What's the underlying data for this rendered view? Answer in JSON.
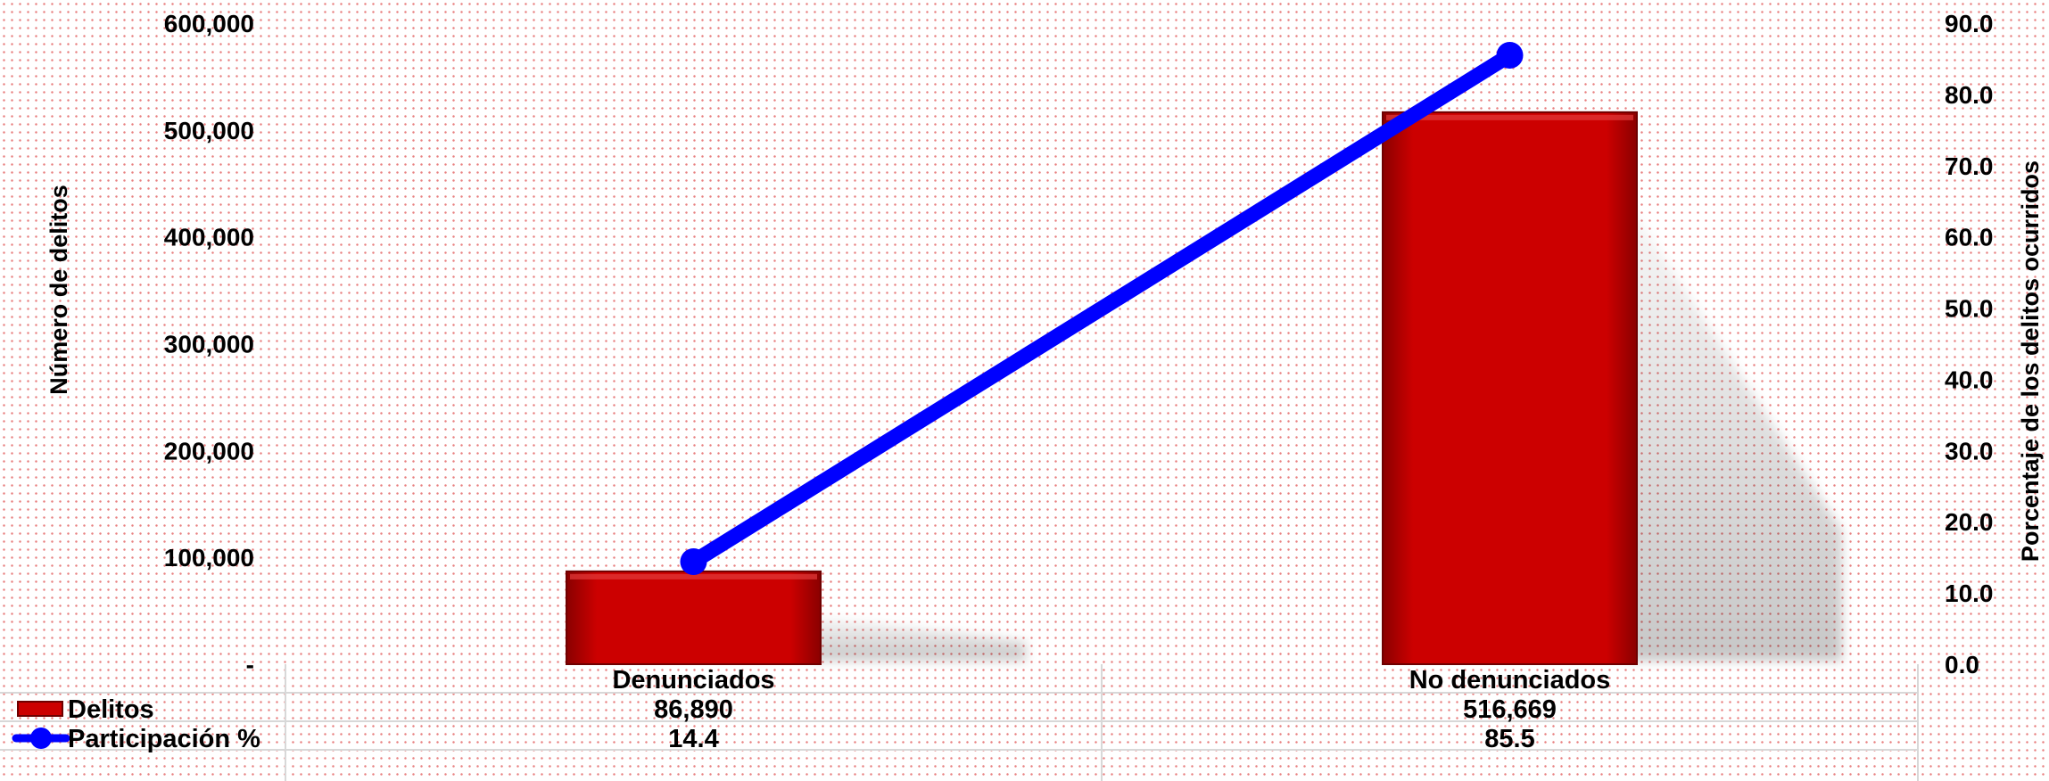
{
  "chart_data": {
    "type": "bar",
    "categories": [
      "Denunciados",
      "No denunciados"
    ],
    "series": [
      {
        "name": "Delitos",
        "type": "bar",
        "axis": "left",
        "color": "#cc0000",
        "values": [
          86890,
          516669
        ],
        "display": [
          "86,890",
          "516,669"
        ]
      },
      {
        "name": "Participación %",
        "type": "line",
        "axis": "right",
        "color": "#0000ff",
        "values": [
          14.4,
          85.5
        ],
        "display": [
          "14.4",
          "85.5"
        ]
      }
    ],
    "ylabel": "Número de delitos",
    "y2label": "Porcentaje de los delitos ocurridos",
    "ylim": [
      0,
      600000
    ],
    "y2lim": [
      0,
      90
    ],
    "yticks": [
      {
        "value": 0,
        "label": "-"
      },
      {
        "value": 100000,
        "label": "100,000"
      },
      {
        "value": 200000,
        "label": "200,000"
      },
      {
        "value": 300000,
        "label": "300,000"
      },
      {
        "value": 400000,
        "label": "400,000"
      },
      {
        "value": 500000,
        "label": "500,000"
      },
      {
        "value": 600000,
        "label": "600,000"
      }
    ],
    "y2ticks": [
      {
        "value": 0,
        "label": "0.0"
      },
      {
        "value": 10,
        "label": "10.0"
      },
      {
        "value": 20,
        "label": "20.0"
      },
      {
        "value": 30,
        "label": "30.0"
      },
      {
        "value": 40,
        "label": "40.0"
      },
      {
        "value": 50,
        "label": "50.0"
      },
      {
        "value": 60,
        "label": "60.0"
      },
      {
        "value": 70,
        "label": "70.0"
      },
      {
        "value": 80,
        "label": "80.0"
      },
      {
        "value": 90,
        "label": "90.0"
      }
    ],
    "data_table": true,
    "grid": false
  }
}
